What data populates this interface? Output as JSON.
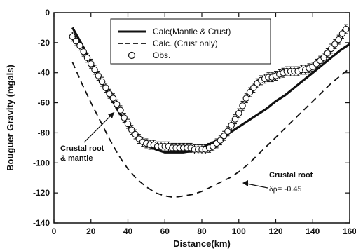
{
  "chart_data": {
    "type": "line",
    "xlabel": "Distance(km)",
    "ylabel": "Bouguer Gravity (mgals)",
    "xlim": [
      0,
      160
    ],
    "ylim": [
      -140,
      0
    ],
    "xticks": [
      "0",
      "20",
      "40",
      "60",
      "80",
      "100",
      "120",
      "140",
      "160"
    ],
    "yticks": [
      "0",
      "-20",
      "-40",
      "-60",
      "-80",
      "-100",
      "-120",
      "-140"
    ],
    "grid": false,
    "legend_position": "top-right",
    "series": [
      {
        "name": "Calc(Mantle & Crust)",
        "style": "solid",
        "x": [
          10,
          15,
          20,
          25,
          30,
          35,
          40,
          45,
          50,
          55,
          60,
          65,
          70,
          75,
          80,
          85,
          90,
          95,
          100,
          105,
          110,
          115,
          120,
          125,
          130,
          135,
          140,
          145,
          150,
          155,
          160
        ],
        "y": [
          -10,
          -21,
          -33,
          -44,
          -55,
          -66,
          -75,
          -83,
          -88,
          -91,
          -93,
          -93,
          -93,
          -92,
          -90,
          -87,
          -84,
          -80,
          -76,
          -72,
          -68,
          -64,
          -59,
          -55,
          -50,
          -45,
          -40,
          -35,
          -30,
          -25,
          -21
        ]
      },
      {
        "name": "Calc. (Crust only)",
        "style": "dashed",
        "x": [
          10,
          15,
          20,
          25,
          30,
          35,
          40,
          45,
          50,
          55,
          60,
          65,
          70,
          75,
          80,
          85,
          90,
          95,
          100,
          105,
          110,
          115,
          120,
          125,
          130,
          135,
          140,
          145,
          150,
          155,
          160
        ],
        "y": [
          -33,
          -47,
          -60,
          -72,
          -84,
          -95,
          -104,
          -111,
          -116,
          -120,
          -122,
          -123,
          -122,
          -121,
          -119,
          -116,
          -113,
          -110,
          -106,
          -101,
          -95,
          -89,
          -83,
          -77,
          -71,
          -65,
          -59,
          -53,
          -47,
          -42,
          -37
        ]
      },
      {
        "name": "Obs.",
        "style": "markers",
        "errorbar": 3,
        "x": [
          10,
          12,
          14,
          16,
          18,
          20,
          22,
          24,
          26,
          28,
          30,
          32,
          34,
          36,
          38,
          40,
          42,
          44,
          46,
          48,
          50,
          52,
          54,
          56,
          58,
          60,
          62,
          64,
          66,
          68,
          70,
          72,
          74,
          76,
          78,
          80,
          82,
          84,
          86,
          88,
          90,
          92,
          94,
          96,
          98,
          100,
          102,
          104,
          106,
          108,
          110,
          112,
          114,
          116,
          118,
          120,
          122,
          124,
          126,
          128,
          130,
          132,
          134,
          136,
          138,
          140,
          142,
          144,
          146,
          148,
          150,
          152,
          154,
          156,
          158
        ],
        "y": [
          -16,
          -19,
          -22,
          -26,
          -30,
          -34,
          -38,
          -42,
          -46,
          -50,
          -54,
          -57,
          -61,
          -65,
          -70,
          -74,
          -78,
          -81,
          -84,
          -86,
          -87,
          -88,
          -88,
          -89,
          -89,
          -89,
          -89,
          -90,
          -90,
          -90,
          -90,
          -90,
          -90,
          -91,
          -91,
          -91,
          -91,
          -90,
          -89,
          -87,
          -85,
          -82,
          -79,
          -75,
          -71,
          -67,
          -62,
          -57,
          -53,
          -50,
          -47,
          -45,
          -44,
          -43,
          -43,
          -42,
          -41,
          -40,
          -39,
          -39,
          -39,
          -39,
          -38,
          -38,
          -37,
          -36,
          -34,
          -32,
          -30,
          -27,
          -24,
          -21,
          -18,
          -14,
          -11
        ]
      }
    ],
    "annotations": [
      {
        "text": "Crustal root",
        "target": "mantle-calc"
      },
      {
        "text": "& mantle",
        "target": "mantle-calc"
      },
      {
        "text": "Crustal root",
        "target": "crust-calc"
      },
      {
        "text": "δρ= -0.45",
        "target": "crust-calc"
      }
    ]
  }
}
